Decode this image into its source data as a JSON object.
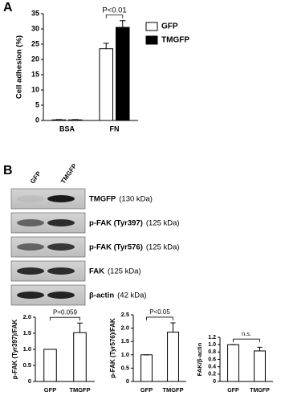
{
  "figure": {
    "panel_a": "A",
    "panel_b": "B",
    "blot": {
      "lanes": [
        "GFP",
        "TMGFP"
      ],
      "bands": [
        {
          "name": "TMGFP",
          "size": "(130 kDa)"
        },
        {
          "name": "p-FAK (Tyr397)",
          "size": "(125 kDa)"
        },
        {
          "name": "p-FAK (Tyr576)",
          "size": "(125 kDa)"
        },
        {
          "name": "FAK",
          "size": "(125 kDa)"
        },
        {
          "name": "β-actin",
          "size": "(42 kDa)"
        }
      ]
    }
  },
  "chart_data": [
    {
      "type": "bar",
      "ylabel": "Cell adhesion (%)",
      "categories": [
        "BSA",
        "FN"
      ],
      "series": [
        {
          "name": "GFP",
          "color": "#ffffff",
          "values": [
            0.2,
            23.5
          ],
          "errors": [
            0.1,
            1.8
          ]
        },
        {
          "name": "TMGFP",
          "color": "#000000",
          "values": [
            0.2,
            30.5
          ],
          "errors": [
            0.1,
            2.2
          ]
        }
      ],
      "annotation": "P<0.01",
      "ylim": [
        0,
        35
      ],
      "yticks": [
        0,
        5,
        10,
        15,
        20,
        25,
        30,
        35
      ]
    },
    {
      "type": "bar",
      "ylabel": "p-FAK (Tyr397)/FAK",
      "categories": [
        "GFP",
        "TMGFP"
      ],
      "color": "#ffffff",
      "values": [
        1,
        1.52
      ],
      "errors": [
        0,
        0.3
      ],
      "annotation": "P=0.059",
      "ylim": [
        0,
        2
      ],
      "yticks": [
        0,
        0.5,
        {
          "value": 1,
          "label": "1.0"
        },
        1.5,
        {
          "value": 2,
          "label": "2.0"
        }
      ]
    },
    {
      "type": "bar",
      "ylabel": "p-FAK (Tyr576)/FAK",
      "categories": [
        "GFP",
        "TMGFP"
      ],
      "color": "#ffffff",
      "values": [
        1,
        1.85
      ],
      "errors": [
        0,
        0.35
      ],
      "annotation": "P<0.05",
      "ylim": [
        0,
        2.5
      ],
      "yticks": [
        0,
        0.5,
        {
          "value": 1,
          "label": "1.0"
        },
        1.5,
        {
          "value": 2,
          "label": "2.0"
        },
        2.5
      ]
    },
    {
      "type": "bar",
      "ylabel": "FAK/β-actin",
      "categories": [
        "GFP",
        "TMGFP"
      ],
      "color": "#ffffff",
      "values": [
        1,
        0.83
      ],
      "errors": [
        0,
        0.1
      ],
      "annotation": "n.s.",
      "ylim": [
        0,
        1.2
      ],
      "yticks": [
        0,
        0.2,
        0.4,
        0.6,
        0.8,
        {
          "value": 1,
          "label": "1.0"
        },
        1.2
      ]
    }
  ]
}
